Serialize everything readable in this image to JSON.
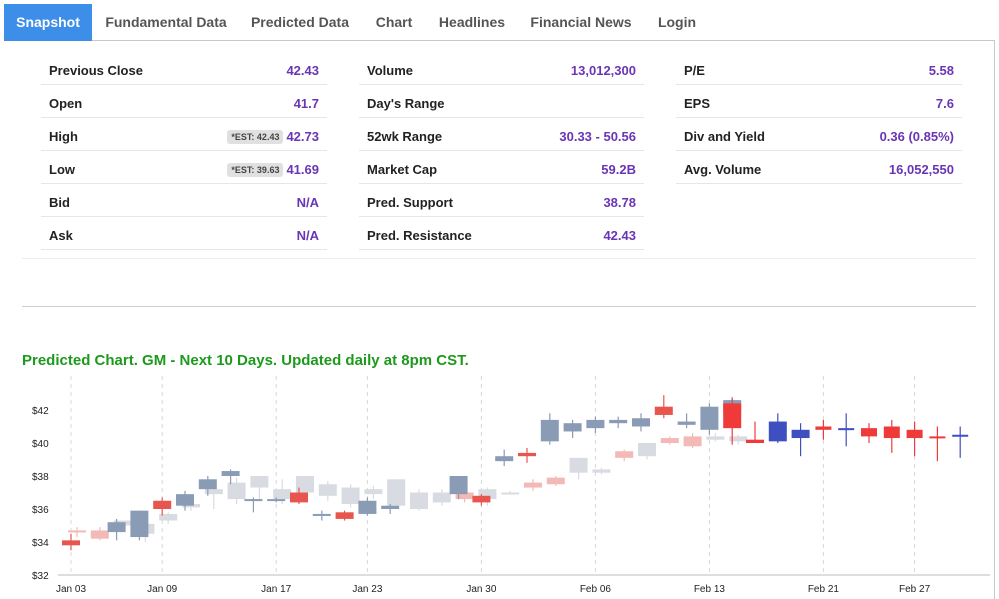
{
  "tabs": [
    {
      "label": "Snapshot",
      "active": true
    },
    {
      "label": "Fundamental Data",
      "active": false
    },
    {
      "label": "Predicted Data",
      "active": false
    },
    {
      "label": "Chart",
      "active": false
    },
    {
      "label": "Headlines",
      "active": false
    },
    {
      "label": "Financial News",
      "active": false
    },
    {
      "label": "Login",
      "active": false
    }
  ],
  "stats": {
    "col1": [
      {
        "label": "Previous Close",
        "value": "42.43",
        "est": ""
      },
      {
        "label": "Open",
        "value": "41.7",
        "est": ""
      },
      {
        "label": "High",
        "value": "42.73",
        "est": "*EST: 42.43"
      },
      {
        "label": "Low",
        "value": "41.69",
        "est": "*EST: 39.63"
      },
      {
        "label": "Bid",
        "value": "N/A",
        "est": ""
      },
      {
        "label": "Ask",
        "value": "N/A",
        "est": ""
      }
    ],
    "col2": [
      {
        "label": "Volume",
        "value": "13,012,300"
      },
      {
        "label": "Day's Range",
        "value": ""
      },
      {
        "label": "52wk Range",
        "value": "30.33 - 50.56"
      },
      {
        "label": "Market Cap",
        "value": "59.2B"
      },
      {
        "label": "Pred. Support",
        "value": "38.78"
      },
      {
        "label": "Pred. Resistance",
        "value": "42.43"
      }
    ],
    "col3": [
      {
        "label": "P/E",
        "value": "5.58"
      },
      {
        "label": "EPS",
        "value": "7.6"
      },
      {
        "label": "Div and Yield",
        "value": "0.36 (0.85%)"
      },
      {
        "label": "Avg. Volume",
        "value": "16,052,550"
      }
    ]
  },
  "chart_title": "Predicted Chart. GM - Next 10 Days. Updated daily at 8pm CST.",
  "colors": {
    "tab_active": "#3d8ee9",
    "value_purple": "#6a35b5",
    "title_green": "#1d9a1d",
    "actual_up": "#8a9bb6",
    "actual_down": "#e8544e",
    "pred_up": "#d9dbe3",
    "pred_down": "#f2b9b6",
    "future_up": "#3f4fbf",
    "future_down": "#f03a3a"
  },
  "chart_data": {
    "type": "candlestick",
    "ylim": [
      32,
      43.5
    ],
    "yticks": [
      "$32",
      "$34",
      "$36",
      "$38",
      "$40",
      "$42"
    ],
    "xtick_labels": [
      {
        "label": "Jan 03",
        "i": 0
      },
      {
        "label": "Jan 09",
        "i": 4
      },
      {
        "label": "Jan 17",
        "i": 9
      },
      {
        "label": "Jan 23",
        "i": 13
      },
      {
        "label": "Jan 30",
        "i": 18
      },
      {
        "label": "Feb 06",
        "i": 23
      },
      {
        "label": "Feb 13",
        "i": 28
      },
      {
        "label": "Feb 21",
        "i": 33
      },
      {
        "label": "Feb 27",
        "i": 37
      }
    ],
    "actual": [
      {
        "o": 34.1,
        "h": 34.5,
        "l": 33.5,
        "c": 33.8
      },
      {
        "o": null
      },
      {
        "o": 34.6,
        "h": 35.4,
        "l": 34.1,
        "c": 35.2
      },
      {
        "o": 34.3,
        "h": 35.9,
        "l": 34.1,
        "c": 35.9
      },
      {
        "o": 36.5,
        "h": 36.7,
        "l": 35.6,
        "c": 36.0
      },
      {
        "o": 36.2,
        "h": 37.1,
        "l": 35.9,
        "c": 36.9
      },
      {
        "o": 37.2,
        "h": 38.0,
        "l": 36.8,
        "c": 37.8
      },
      {
        "o": 38.0,
        "h": 38.4,
        "l": 37.5,
        "c": 38.3
      },
      {
        "o": 36.5,
        "h": 36.7,
        "l": 35.8,
        "c": 36.6
      },
      {
        "o": 36.5,
        "h": 36.7,
        "l": 36.4,
        "c": 36.6
      },
      {
        "o": 37.0,
        "h": 37.3,
        "l": 36.3,
        "c": 36.4
      },
      {
        "o": 35.7,
        "h": 35.9,
        "l": 35.3,
        "c": 35.7
      },
      {
        "o": 35.8,
        "h": 35.9,
        "l": 35.3,
        "c": 35.4
      },
      {
        "o": 35.7,
        "h": 36.7,
        "l": 35.6,
        "c": 36.5
      },
      {
        "o": 36.0,
        "h": 36.3,
        "l": 35.7,
        "c": 36.2
      },
      {
        "o": null
      },
      {
        "o": null
      },
      {
        "o": 36.9,
        "h": 38.0,
        "l": 36.6,
        "c": 38.0
      },
      {
        "o": 36.8,
        "h": 36.9,
        "l": 36.2,
        "c": 36.4
      },
      {
        "o": 38.9,
        "h": 39.6,
        "l": 38.6,
        "c": 39.2
      },
      {
        "o": 39.4,
        "h": 39.7,
        "l": 38.8,
        "c": 39.2
      },
      {
        "o": 40.1,
        "h": 41.8,
        "l": 39.9,
        "c": 41.4
      },
      {
        "o": 40.7,
        "h": 41.4,
        "l": 40.3,
        "c": 41.2
      },
      {
        "o": 40.9,
        "h": 41.6,
        "l": 40.6,
        "c": 41.4
      },
      {
        "o": 41.2,
        "h": 41.6,
        "l": 40.9,
        "c": 41.4
      },
      {
        "o": 41.0,
        "h": 41.8,
        "l": 40.7,
        "c": 41.5
      },
      {
        "o": 42.2,
        "h": 42.9,
        "l": 41.5,
        "c": 41.7
      },
      {
        "o": 41.1,
        "h": 41.8,
        "l": 40.9,
        "c": 41.3
      },
      {
        "o": 40.8,
        "h": 42.4,
        "l": 40.5,
        "c": 42.2
      },
      {
        "o": 41.8,
        "h": 42.8,
        "l": 41.5,
        "c": 42.6
      }
    ],
    "predicted": [
      {
        "o": 34.7,
        "h": 34.9,
        "l": 34.3,
        "c": 34.6
      },
      {
        "o": 34.7,
        "h": 34.9,
        "l": 34.1,
        "c": 34.2
      },
      {
        "o": 35.0,
        "h": 35.3,
        "l": 34.8,
        "c": 35.3
      },
      {
        "o": 34.5,
        "h": 35.2,
        "l": 34.0,
        "c": 35.1
      },
      {
        "o": 35.3,
        "h": 35.8,
        "l": 35.1,
        "c": 35.7
      },
      {
        "o": 36.1,
        "h": 36.5,
        "l": 35.9,
        "c": 36.3
      },
      {
        "o": 36.9,
        "h": 37.8,
        "l": 36.0,
        "c": 37.2
      },
      {
        "o": 36.6,
        "h": 37.9,
        "l": 36.3,
        "c": 37.6
      },
      {
        "o": 37.3,
        "h": 38.0,
        "l": 36.5,
        "c": 38.0
      },
      {
        "o": 36.6,
        "h": 37.8,
        "l": 36.3,
        "c": 37.2
      },
      {
        "o": 37.0,
        "h": 38.0,
        "l": 36.6,
        "c": 38.0
      },
      {
        "o": 36.8,
        "h": 37.7,
        "l": 36.5,
        "c": 37.5
      },
      {
        "o": 36.3,
        "h": 37.5,
        "l": 36.1,
        "c": 37.3
      },
      {
        "o": 36.9,
        "h": 37.4,
        "l": 36.6,
        "c": 37.2
      },
      {
        "o": 36.2,
        "h": 37.8,
        "l": 36.0,
        "c": 37.8
      },
      {
        "o": 36.0,
        "h": 37.2,
        "l": 35.9,
        "c": 37.0
      },
      {
        "o": 36.4,
        "h": 37.2,
        "l": 36.2,
        "c": 37.0
      },
      {
        "o": 37.0,
        "h": 37.3,
        "l": 36.4,
        "c": 36.6
      },
      {
        "o": 36.6,
        "h": 37.3,
        "l": 36.2,
        "c": 37.2
      },
      {
        "o": 37.0,
        "h": 37.1,
        "l": 36.9,
        "c": 37.0
      },
      {
        "o": 37.6,
        "h": 37.8,
        "l": 37.1,
        "c": 37.3
      },
      {
        "o": 37.9,
        "h": 38.0,
        "l": 37.4,
        "c": 37.5
      },
      {
        "o": 38.2,
        "h": 38.3,
        "l": 37.8,
        "c": 39.1
      },
      {
        "o": 38.2,
        "h": 38.5,
        "l": 38.1,
        "c": 38.4
      },
      {
        "o": 39.5,
        "h": 39.6,
        "l": 38.9,
        "c": 39.1
      },
      {
        "o": 39.2,
        "h": 40.0,
        "l": 39.0,
        "c": 40.0
      },
      {
        "o": 40.3,
        "h": 40.4,
        "l": 39.9,
        "c": 40.0
      },
      {
        "o": 40.4,
        "h": 40.6,
        "l": 39.7,
        "c": 39.8
      },
      {
        "o": 40.2,
        "h": 40.6,
        "l": 40.1,
        "c": 40.4
      },
      {
        "o": 40.1,
        "h": 40.5,
        "l": 39.9,
        "c": 40.4
      }
    ],
    "future": [
      {
        "i": 29,
        "o": 42.4,
        "h": 42.7,
        "l": 39.9,
        "c": 40.9
      },
      {
        "i": 30,
        "o": 40.2,
        "h": 41.3,
        "l": 40.0,
        "c": 40.0
      },
      {
        "i": 31,
        "o": 40.1,
        "h": 41.8,
        "l": 40.0,
        "c": 41.3
      },
      {
        "i": 32,
        "o": 40.3,
        "h": 41.2,
        "l": 39.2,
        "c": 40.8
      },
      {
        "i": 33,
        "o": 41.0,
        "h": 41.4,
        "l": 40.2,
        "c": 40.8
      },
      {
        "i": 34,
        "o": 40.9,
        "h": 41.8,
        "l": 39.8,
        "c": 40.9
      },
      {
        "i": 35,
        "o": 40.9,
        "h": 41.2,
        "l": 40.0,
        "c": 40.4
      },
      {
        "i": 36,
        "o": 41.0,
        "h": 41.4,
        "l": 39.4,
        "c": 40.3
      },
      {
        "i": 37,
        "o": 40.8,
        "h": 41.3,
        "l": 39.2,
        "c": 40.3
      },
      {
        "i": 38,
        "o": 40.4,
        "h": 41.0,
        "l": 38.9,
        "c": 40.3
      },
      {
        "i": 39,
        "o": 40.4,
        "h": 41.0,
        "l": 39.1,
        "c": 40.5
      }
    ]
  }
}
